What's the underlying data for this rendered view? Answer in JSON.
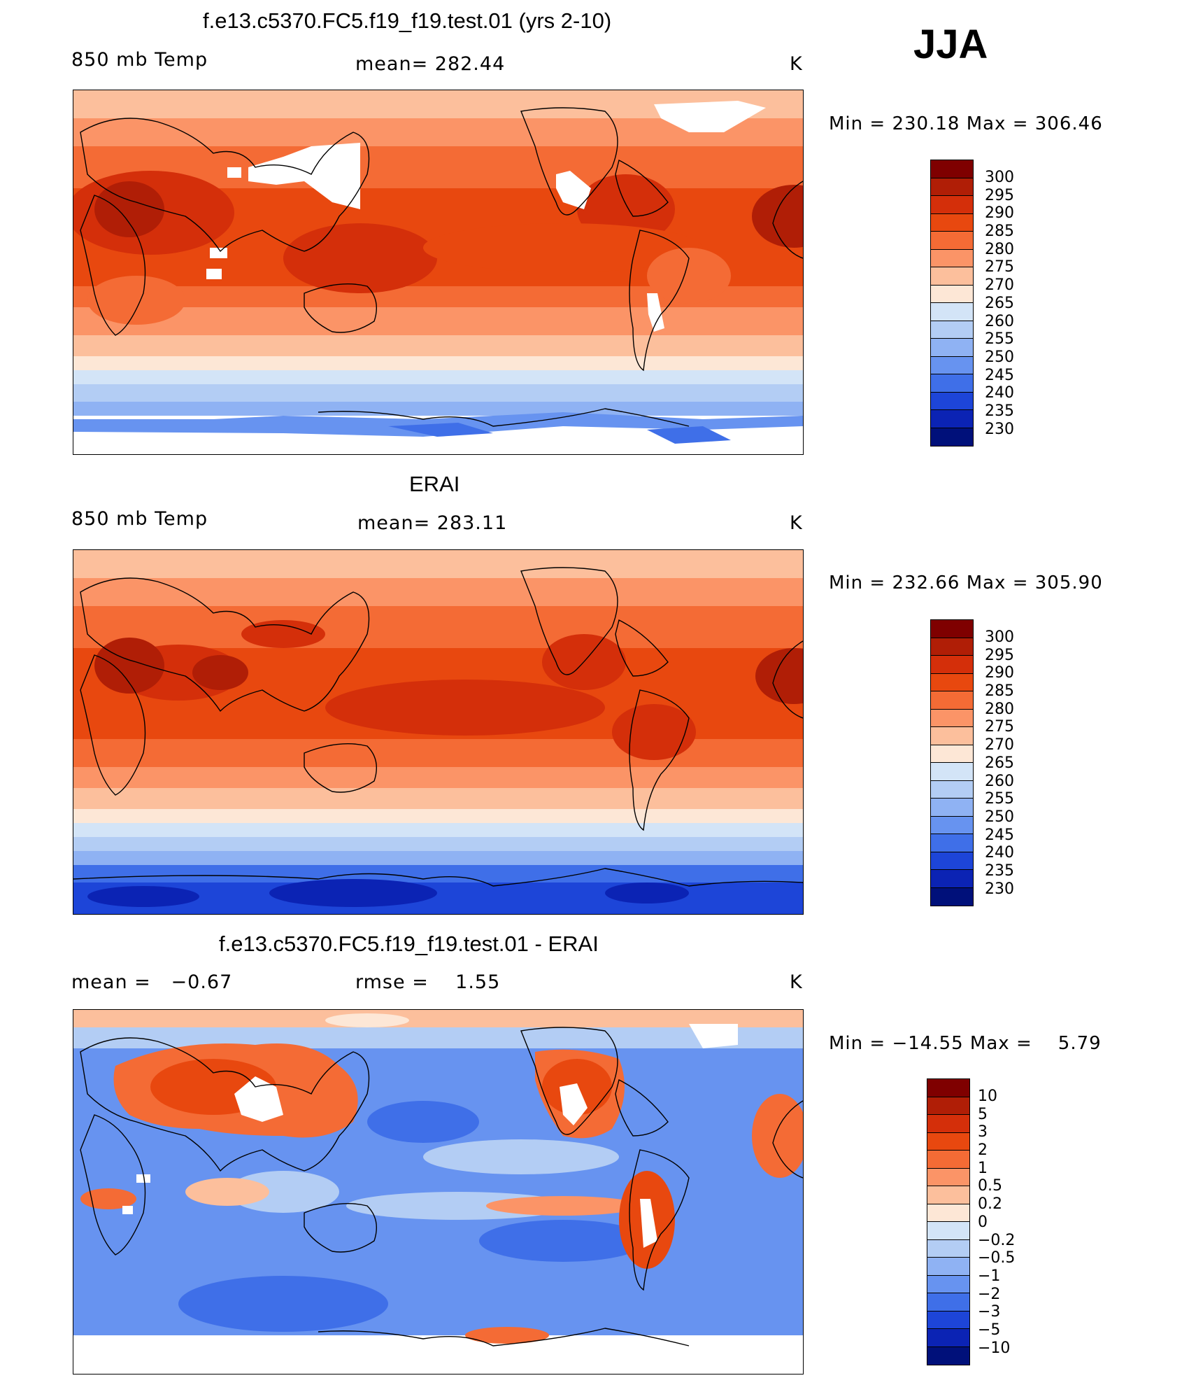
{
  "season": "JJA",
  "panels": [
    {
      "title": "f.e13.c5370.FC5.f19_f19.test.01 (yrs 2-10)",
      "left": "850 mb Temp",
      "center": "mean= 282.44",
      "units": "K",
      "minmax": "Min = 230.18 Max = 306.46",
      "scale": "abs",
      "colorbar_labels": [
        "300",
        "295",
        "290",
        "285",
        "280",
        "275",
        "270",
        "265",
        "260",
        "255",
        "250",
        "245",
        "240",
        "235",
        "230"
      ]
    },
    {
      "title": "ERAI",
      "left": "850 mb Temp",
      "center": "mean= 283.11",
      "units": "K",
      "minmax": "Min = 232.66 Max = 305.90",
      "scale": "abs",
      "colorbar_labels": [
        "300",
        "295",
        "290",
        "285",
        "280",
        "275",
        "270",
        "265",
        "260",
        "255",
        "250",
        "245",
        "240",
        "235",
        "230"
      ]
    },
    {
      "title": "f.e13.c5370.FC5.f19_f19.test.01 - ERAI",
      "left": "mean =   −0.67",
      "center": "rmse =    1.55",
      "units": "K",
      "minmax": "Min = −14.55 Max =    5.79",
      "scale": "diff",
      "colorbar_labels": [
        "10",
        "5",
        "3",
        "2",
        "1",
        "0.5",
        "0.2",
        "0",
        "−0.2",
        "−0.5",
        "−1",
        "−2",
        "−3",
        "−5",
        "−10"
      ]
    }
  ],
  "colors": {
    "abs": [
      "#7f0000",
      "#b01e06",
      "#d42f0a",
      "#e8480f",
      "#f46b35",
      "#fb9467",
      "#fcbf9c",
      "#fde7d6",
      "#d3e4f7",
      "#b3cdf4",
      "#8fb2f3",
      "#6793f0",
      "#3f6fe8",
      "#1d45d8",
      "#0b23b4",
      "#00107a"
    ],
    "diff": [
      "#7f0000",
      "#b01e06",
      "#d42f0a",
      "#e8480f",
      "#f46b35",
      "#fb9467",
      "#fcbf9c",
      "#fde7d6",
      "#d3e4f7",
      "#b3cdf4",
      "#8fb2f3",
      "#6793f0",
      "#3f6fe8",
      "#1d45d8",
      "#0b23b4",
      "#00107a"
    ],
    "coast": "#000000",
    "missing": "#ffffff"
  }
}
